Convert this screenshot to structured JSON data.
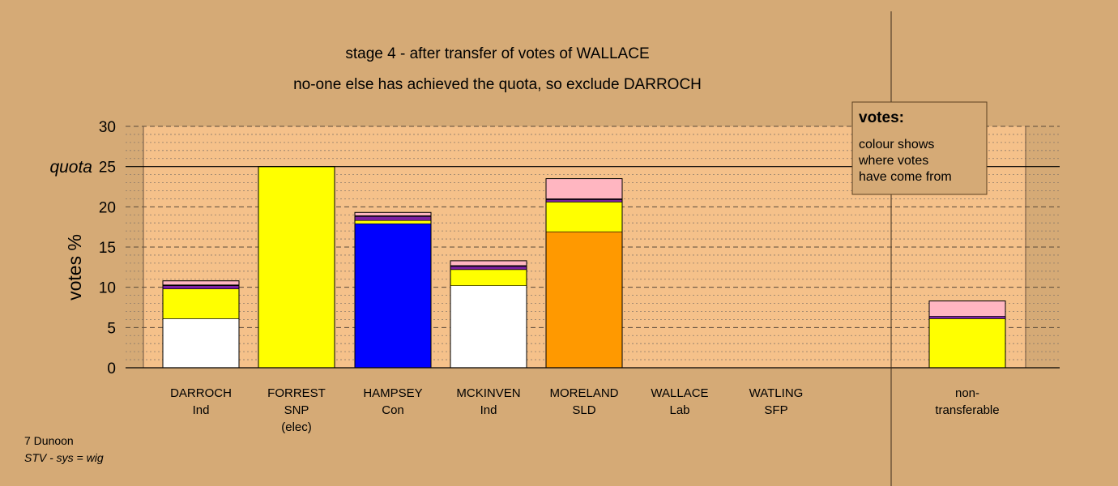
{
  "chart_data": {
    "type": "bar",
    "stacked": true,
    "title": "stage 4 - after transfer of votes of WALLACE",
    "subtitle": "no-one else has achieved the quota, so exclude DARROCH",
    "ylabel": "votes %",
    "ylim": [
      0,
      30
    ],
    "yticks": [
      0,
      5,
      10,
      15,
      20,
      25,
      30
    ],
    "quota": {
      "value": 25,
      "label": "quota"
    },
    "grid": "dashed major every 5, dotted minor every 1",
    "categories": [
      {
        "line1": "DARROCH",
        "line2": "Ind",
        "line3": ""
      },
      {
        "line1": "FORREST",
        "line2": "SNP",
        "line3": "(elec)"
      },
      {
        "line1": "HAMPSEY",
        "line2": "Con",
        "line3": ""
      },
      {
        "line1": "MCKINVEN",
        "line2": "Ind",
        "line3": ""
      },
      {
        "line1": "MORELAND",
        "line2": "SLD",
        "line3": ""
      },
      {
        "line1": "WALLACE",
        "line2": "Lab",
        "line3": ""
      },
      {
        "line1": "WATLING",
        "line2": "SFP",
        "line3": ""
      }
    ],
    "nontransferable": {
      "line1": "non-",
      "line2": "transferable"
    },
    "stacks": [
      [
        {
          "value": 6.1,
          "color": "#FFFFFF"
        },
        {
          "value": 3.7,
          "color": "#FFFF00"
        },
        {
          "value": 0.4,
          "color": "#7B1FA2"
        },
        {
          "value": 0.1,
          "color": "#000000"
        },
        {
          "value": 0.5,
          "color": "#FFB6C1"
        }
      ],
      [
        {
          "value": 25.0,
          "color": "#FFFF00"
        }
      ],
      [
        {
          "value": 17.9,
          "color": "#0000FF"
        },
        {
          "value": 0.4,
          "color": "#FFFF00"
        },
        {
          "value": 0.5,
          "color": "#7B1FA2"
        },
        {
          "value": 0.1,
          "color": "#000000"
        },
        {
          "value": 0.4,
          "color": "#FFB6C1"
        }
      ],
      [
        {
          "value": 10.2,
          "color": "#FFFFFF"
        },
        {
          "value": 2.0,
          "color": "#FFFF00"
        },
        {
          "value": 0.4,
          "color": "#7B1FA2"
        },
        {
          "value": 0.1,
          "color": "#000000"
        },
        {
          "value": 0.6,
          "color": "#FFB6C1"
        }
      ],
      [
        {
          "value": 16.9,
          "color": "#FF9900"
        },
        {
          "value": 3.7,
          "color": "#FFFF00"
        },
        {
          "value": 0.3,
          "color": "#7B1FA2"
        },
        {
          "value": 0.1,
          "color": "#000000"
        },
        {
          "value": 2.5,
          "color": "#FFB6C1"
        }
      ],
      [],
      [],
      [
        {
          "value": 6.1,
          "color": "#FFFF00"
        },
        {
          "value": 0.3,
          "color": "#7B1FA2"
        },
        {
          "value": 1.9,
          "color": "#FFB6C1"
        }
      ]
    ],
    "legend": {
      "title": "votes:",
      "lines": [
        "colour shows",
        "where votes",
        "have come from"
      ]
    }
  },
  "footer": {
    "ward": "7 Dunoon",
    "system": "STV - sys = wig"
  },
  "colors": {
    "background": "#D5AA76",
    "plot_area": "#F5C18A",
    "legend_box": "#D5AA76"
  }
}
